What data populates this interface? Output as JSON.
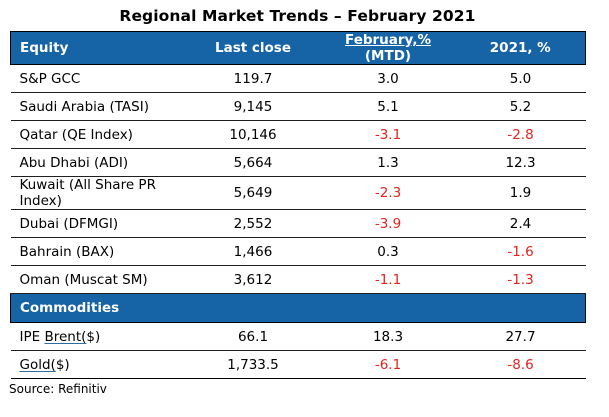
{
  "title": "Regional Market Trends – February 2021",
  "colors": {
    "header_blue": "#1663A5",
    "negative_red": "#E3231C",
    "text_black": "#000000"
  },
  "table": {
    "headers": {
      "equity": "Equity",
      "last_close": "Last close",
      "feb_underlined": "February,%",
      "feb_rest": " (MTD)",
      "ytd": "2021, %"
    },
    "equity_rows": [
      {
        "name": "S&P GCC",
        "last_close": "119.7",
        "feb": "3.0",
        "ytd": "5.0"
      },
      {
        "name": "Saudi Arabia (TASI)",
        "last_close": "9,145",
        "feb": "5.1",
        "ytd": "5.2"
      },
      {
        "name": "Qatar (QE Index)",
        "last_close": "10,146",
        "feb": "-3.1",
        "ytd": "-2.8"
      },
      {
        "name": "Abu Dhabi (ADI)",
        "last_close": "5,664",
        "feb": "1.3",
        "ytd": "12.3"
      },
      {
        "name": "Kuwait (All Share PR Index)",
        "last_close": "5,649",
        "feb": "-2.3",
        "ytd": "1.9"
      },
      {
        "name": "Dubai (DFMGI)",
        "last_close": "2,552",
        "feb": "-3.9",
        "ytd": "2.4"
      },
      {
        "name": "Bahrain (BAX)",
        "last_close": "1,466",
        "feb": "0.3",
        "ytd": "-1.6"
      },
      {
        "name": "Oman (Muscat SM)",
        "last_close": "3,612",
        "feb": "-1.1",
        "ytd": "-1.3"
      }
    ],
    "section_header": "Commodities",
    "commodity_rows": [
      {
        "name": "IPE Brent($)",
        "parts": [
          {
            "text": "IPE ",
            "underline": false
          },
          {
            "text": "Brent(",
            "underline": true
          },
          {
            "text": "$)",
            "underline": false
          }
        ],
        "last_close": "66.1",
        "feb": "18.3",
        "ytd": "27.7"
      },
      {
        "name": "Gold($)",
        "parts": [
          {
            "text": "Gold(",
            "underline": true
          },
          {
            "text": "$)",
            "underline": false
          }
        ],
        "last_close": "1,733.5",
        "feb": "-6.1",
        "ytd": "-8.6"
      }
    ]
  },
  "source": "Source: Refinitiv"
}
